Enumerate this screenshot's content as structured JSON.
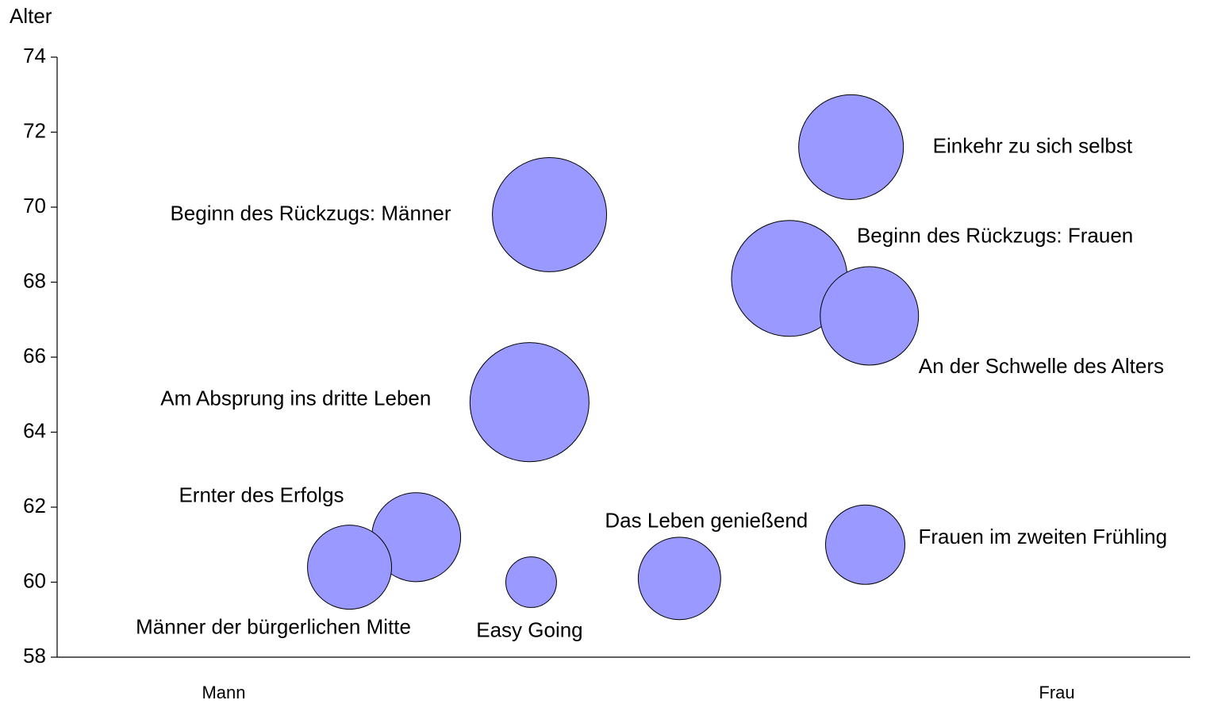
{
  "chart_data": {
    "type": "bubble",
    "y_label": "Alter",
    "labels": [
      "Einkehr zu sich selbst",
      "Beginn des Rückzugs: Männer",
      "Beginn des Rückzugs: Frauen",
      "An der Schwelle des Alters",
      "Am Absprung ins dritte Leben",
      "Ernter des Erfolgs",
      "Männer der bürgerlichen Mitte",
      "Easy Going",
      "Das Leben genießend",
      "Frauen im zweiten Frühling"
    ],
    "x": [
      75.3,
      39.1,
      67.9,
      77.5,
      36.7,
      23.1,
      15.1,
      36.9,
      54.7,
      77.0
    ],
    "values": [
      71.6,
      69.8,
      68.1,
      67.1,
      64.8,
      61.2,
      60.4,
      60.0,
      60.1,
      61.0
    ],
    "sizes": [
      43.6,
      51.8,
      53.3,
      38.4,
      56.3,
      31.4,
      28.1,
      10.2,
      27.0,
      25.0
    ],
    "color": "#9999ff",
    "xlim": [
      -20,
      116
    ],
    "xticks": [
      {
        "value": 0,
        "label": "Mann"
      },
      {
        "value": 100,
        "label": "Frau"
      }
    ],
    "ylim": [
      58,
      74
    ],
    "yticks": [
      58,
      60,
      62,
      64,
      66,
      68,
      70,
      72,
      74
    ]
  }
}
